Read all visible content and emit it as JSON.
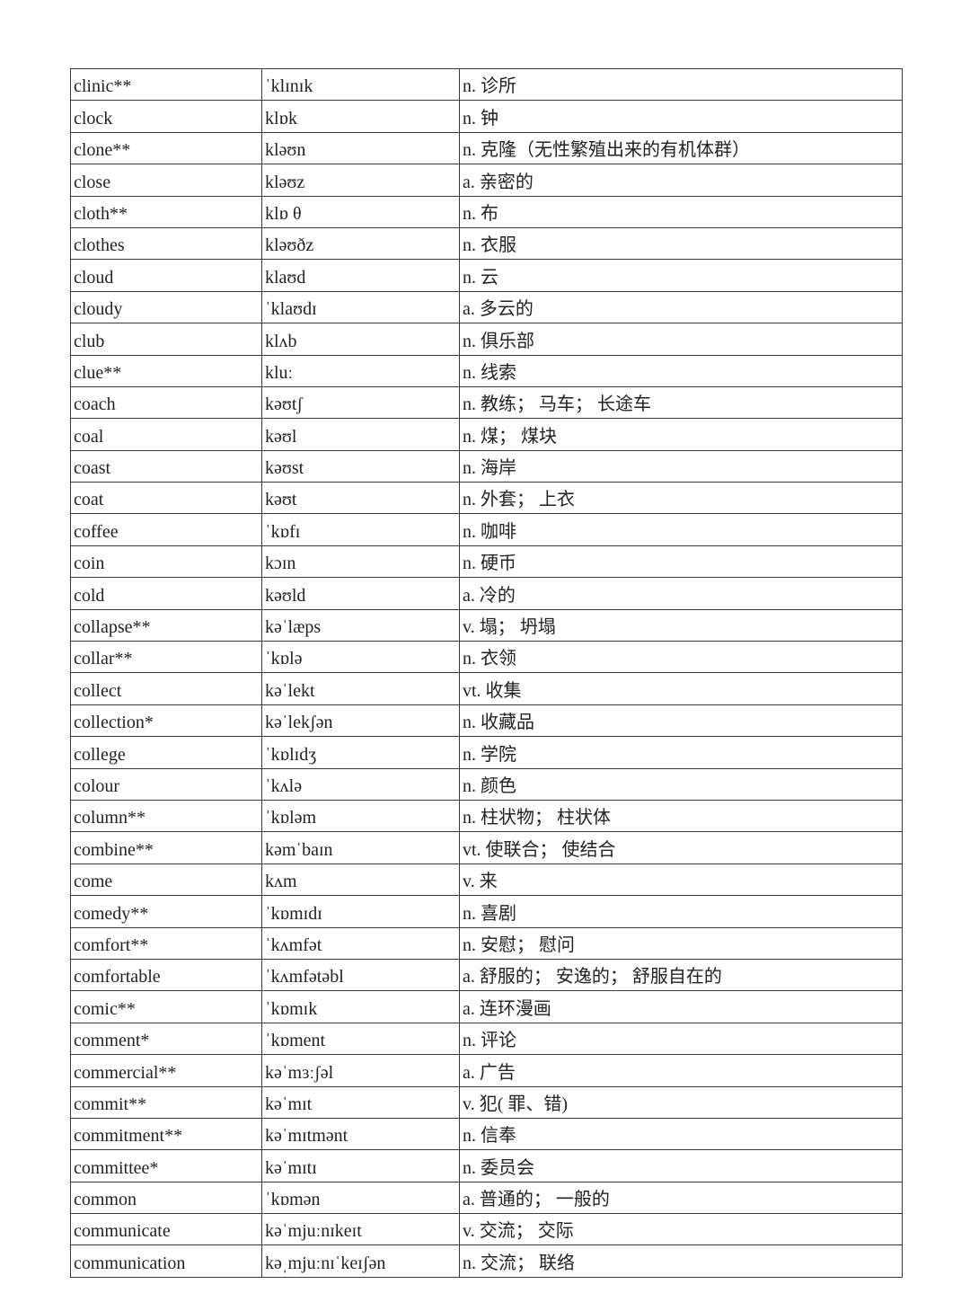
{
  "rows": [
    [
      "clinic**",
      "ˈklɪnɪk",
      "n. 诊所"
    ],
    [
      "clock",
      "klɒk",
      "n. 钟"
    ],
    [
      "clone**",
      "kləʊn",
      "n. 克隆（无性繁殖出来的有机体群）"
    ],
    [
      "close",
      "kləʊz",
      "a. 亲密的"
    ],
    [
      "cloth**",
      "klɒ θ",
      "n. 布"
    ],
    [
      "clothes",
      "kləʊðz",
      "n. 衣服"
    ],
    [
      "cloud",
      "klaʊd",
      "n. 云"
    ],
    [
      "cloudy",
      "ˈklaʊdɪ",
      "a. 多云的"
    ],
    [
      "club",
      "klʌb",
      "n. 俱乐部"
    ],
    [
      "clue**",
      "kluː",
      "n. 线索"
    ],
    [
      "coach",
      "kəʊtʃ",
      "n. 教练； 马车； 长途车"
    ],
    [
      "coal",
      "kəʊl",
      "n. 煤； 煤块"
    ],
    [
      "coast",
      "kəʊst",
      "n. 海岸"
    ],
    [
      "coat",
      "kəʊt",
      "n. 外套； 上衣"
    ],
    [
      "coffee",
      "ˈkɒfɪ",
      "n. 咖啡"
    ],
    [
      "coin",
      "kɔɪn",
      "n. 硬币"
    ],
    [
      "cold",
      "kəʊld",
      "a. 冷的"
    ],
    [
      "collapse**",
      "kəˈlæps",
      "v. 塌； 坍塌"
    ],
    [
      "collar**",
      "ˈkɒlə",
      "n. 衣领"
    ],
    [
      "collect",
      "kəˈlekt",
      "vt. 收集"
    ],
    [
      "collection*",
      "kəˈlekʃən",
      "n. 收藏品"
    ],
    [
      "college",
      "ˈkɒlɪdʒ",
      "n. 学院"
    ],
    [
      "colour",
      "ˈkʌlə",
      "n. 颜色"
    ],
    [
      "column**",
      "ˈkɒləm",
      "n. 柱状物； 柱状体"
    ],
    [
      "combine**",
      "kəmˈbaɪn",
      "vt. 使联合； 使结合"
    ],
    [
      "come",
      "kʌm",
      "v. 来"
    ],
    [
      "comedy**",
      "ˈkɒmɪdɪ",
      "n. 喜剧"
    ],
    [
      "comfort**",
      "ˈkʌmfət",
      "n. 安慰； 慰问"
    ],
    [
      "comfortable",
      "ˈkʌmfətəbl",
      "a. 舒服的； 安逸的； 舒服自在的"
    ],
    [
      "comic**",
      "ˈkɒmɪk",
      "a. 连环漫画"
    ],
    [
      "comment*",
      "ˈkɒment",
      "n. 评论"
    ],
    [
      "commercial**",
      "kəˈmɜːʃəl",
      "a. 广告"
    ],
    [
      "commit**",
      "kəˈmɪt",
      "v. 犯( 罪、错)"
    ],
    [
      "commitment**",
      "kəˈmɪtmənt",
      "n. 信奉"
    ],
    [
      "committee*",
      "kəˈmɪtɪ",
      "n. 委员会"
    ],
    [
      "common",
      "ˈkɒmən",
      "a. 普通的； 一般的"
    ],
    [
      "communicate",
      "kəˈmjuːnɪkeɪt",
      "v. 交流； 交际"
    ],
    [
      "communication",
      "kəˌmjuːnɪˈkeɪʃən",
      "n. 交流； 联络"
    ]
  ]
}
